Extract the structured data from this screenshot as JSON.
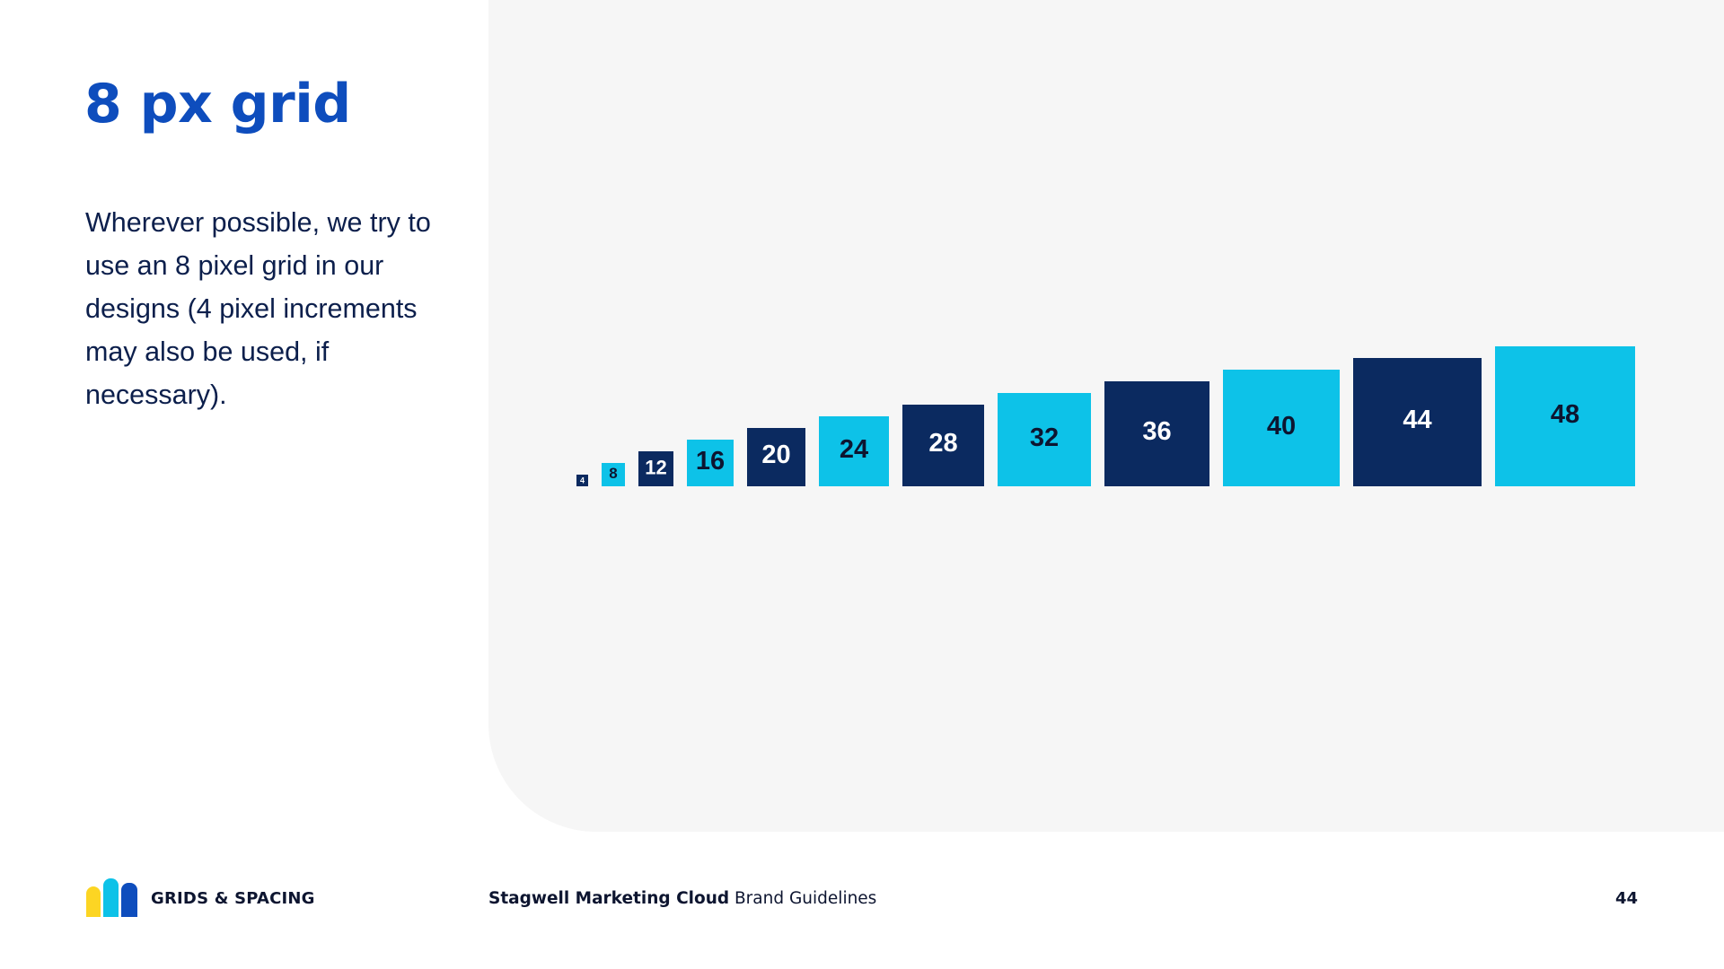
{
  "page": {
    "title": "8 px grid",
    "body": "Wherever possible, we try to use an 8 pixel grid in our designs (4 pixel increments may also be used, if necessary)."
  },
  "colors": {
    "brand_blue": "#0e4dbd",
    "navy": "#0b2a60",
    "cyan": "#0dc2e8",
    "yellow": "#fcd523",
    "panel_bg": "#f6f6f6",
    "dark_text": "#0d1530",
    "white_text": "#ffffff"
  },
  "chart_data": {
    "type": "bar",
    "title": "",
    "xlabel": "",
    "ylabel": "",
    "categories": [
      "4",
      "8",
      "12",
      "16",
      "20",
      "24",
      "28",
      "32",
      "36",
      "40",
      "44",
      "48"
    ],
    "values": [
      4,
      8,
      12,
      16,
      20,
      24,
      28,
      32,
      36,
      40,
      44,
      48
    ],
    "fill_pattern": [
      "navy",
      "cyan",
      "navy",
      "cyan",
      "navy",
      "cyan",
      "navy",
      "cyan",
      "navy",
      "cyan",
      "navy",
      "cyan"
    ],
    "label_color_pattern": [
      "white",
      "dark",
      "white",
      "dark",
      "white",
      "dark",
      "white",
      "dark",
      "white",
      "dark",
      "white",
      "dark"
    ],
    "shape": "square",
    "ylim": [
      0,
      48
    ],
    "grid": false,
    "legend": "none"
  },
  "footer": {
    "logo_icon": "stagwell-bars-logo",
    "section": "GRIDS & SPACING",
    "brand_strong": "Stagwell Marketing Cloud",
    "brand_rest": " Brand Guidelines",
    "page_number": "44"
  }
}
